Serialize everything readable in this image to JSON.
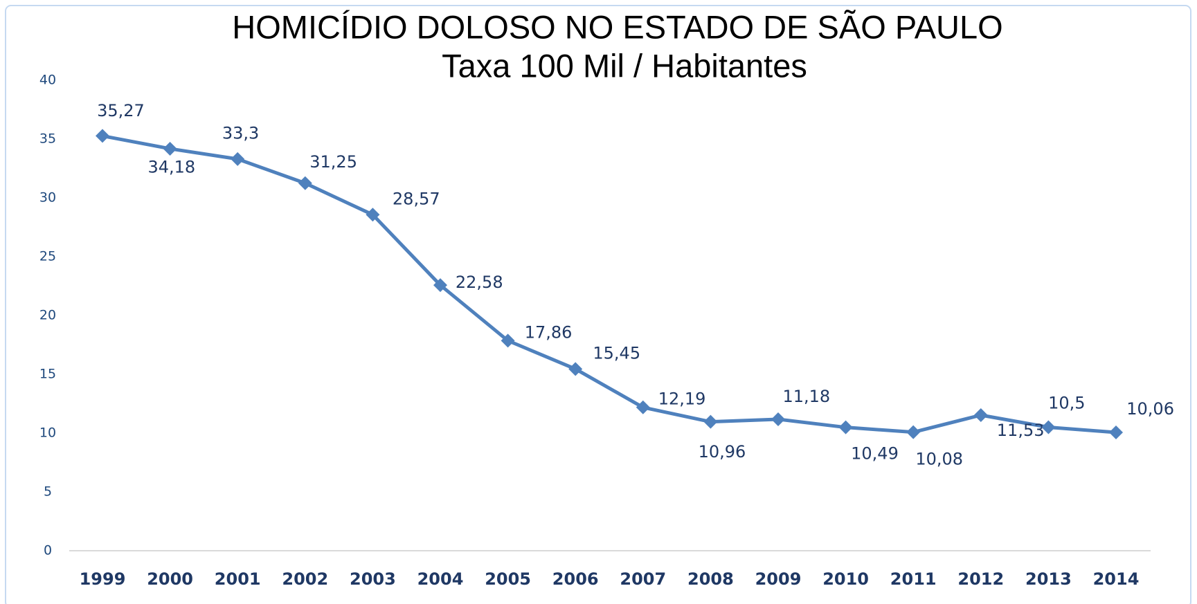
{
  "chart_data": {
    "type": "line",
    "title": "HOMICÍDIO DOLOSO NO ESTADO DE SÃO PAULO",
    "subtitle": "Taxa 100 Mil / Habitantes",
    "categories": [
      "1999",
      "2000",
      "2001",
      "2002",
      "2003",
      "2004",
      "2005",
      "2006",
      "2007",
      "2008",
      "2009",
      "2010",
      "2011",
      "2012",
      "2013",
      "2014"
    ],
    "series": [
      {
        "name": null,
        "color": "#4f81bd",
        "values": [
          35.27,
          34.18,
          33.3,
          31.25,
          28.57,
          22.58,
          17.86,
          15.45,
          12.19,
          10.96,
          11.18,
          10.49,
          10.08,
          11.53,
          10.5,
          10.06
        ],
        "value_labels": [
          "35,27",
          "34,18",
          "33,3",
          "31,25",
          "28,57",
          "22,58",
          "17,86",
          "15,45",
          "12,19",
          "10,96",
          "11,18",
          "10,49",
          "10,08",
          "11,53",
          "10,5",
          "10,06"
        ]
      }
    ],
    "ylim": [
      0,
      40
    ],
    "yticks": [
      0,
      5,
      10,
      15,
      20,
      25,
      30,
      35,
      40
    ],
    "grid": false
  }
}
